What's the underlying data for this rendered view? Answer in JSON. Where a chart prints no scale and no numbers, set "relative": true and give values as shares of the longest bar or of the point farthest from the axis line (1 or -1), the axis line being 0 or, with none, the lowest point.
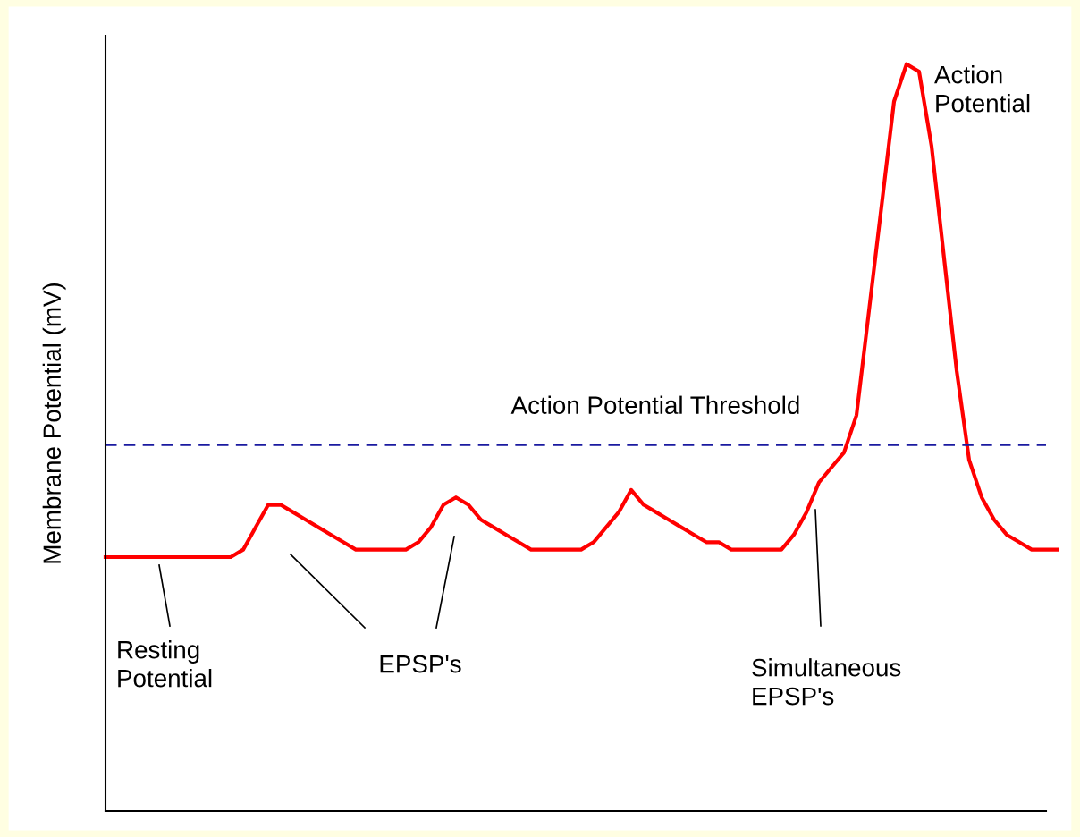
{
  "chart_data": {
    "type": "line",
    "relative": true,
    "ylabel": "Membrane Potential (mV)",
    "categories": [
      null,
      null,
      null,
      null,
      null,
      null,
      null,
      null,
      null,
      null,
      null,
      null,
      null,
      null,
      null,
      null,
      null,
      null,
      null,
      null,
      null,
      null,
      null,
      null,
      null,
      null,
      null,
      null,
      null,
      null,
      null,
      null,
      null,
      null,
      null,
      null,
      null,
      null,
      null,
      null,
      null,
      null,
      null,
      null,
      null,
      null,
      null,
      null,
      null,
      null,
      null,
      null,
      null,
      null,
      null,
      null,
      null,
      null,
      null,
      null,
      null,
      null,
      null,
      null,
      null,
      null,
      null,
      null,
      null,
      null,
      null,
      null,
      null,
      null,
      null,
      null,
      null
    ],
    "series": [
      {
        "color": "#ff0000",
        "values": [
          0.34,
          0.34,
          0.34,
          0.34,
          0.34,
          0.34,
          0.34,
          0.34,
          0.34,
          0.34,
          0.34,
          0.35,
          0.38,
          0.41,
          0.41,
          0.4,
          0.39,
          0.38,
          0.37,
          0.36,
          0.35,
          0.35,
          0.35,
          0.35,
          0.35,
          0.36,
          0.38,
          0.41,
          0.42,
          0.41,
          0.39,
          0.38,
          0.37,
          0.36,
          0.35,
          0.35,
          0.35,
          0.35,
          0.35,
          0.36,
          0.38,
          0.4,
          0.43,
          0.41,
          0.4,
          0.39,
          0.38,
          0.37,
          0.36,
          0.36,
          0.35,
          0.35,
          0.35,
          0.35,
          0.35,
          0.37,
          0.4,
          0.44,
          0.46,
          0.48,
          0.53,
          0.67,
          0.81,
          0.95,
          1.0,
          0.99,
          0.89,
          0.74,
          0.59,
          0.47,
          0.42,
          0.39,
          0.37,
          0.36,
          0.35,
          0.35,
          0.35
        ]
      }
    ],
    "ref_lines": [
      {
        "axis": "y",
        "value": 0.49,
        "label": "Action Potential Threshold",
        "color": "#1a1aa0",
        "line_style": "dashed"
      }
    ],
    "annotations": [
      "Resting Potential",
      "EPSP's",
      "Simultaneous EPSP's",
      "Action Potential"
    ],
    "legend": false,
    "marker": "none",
    "line_style": "solid",
    "tick_labels": false
  }
}
